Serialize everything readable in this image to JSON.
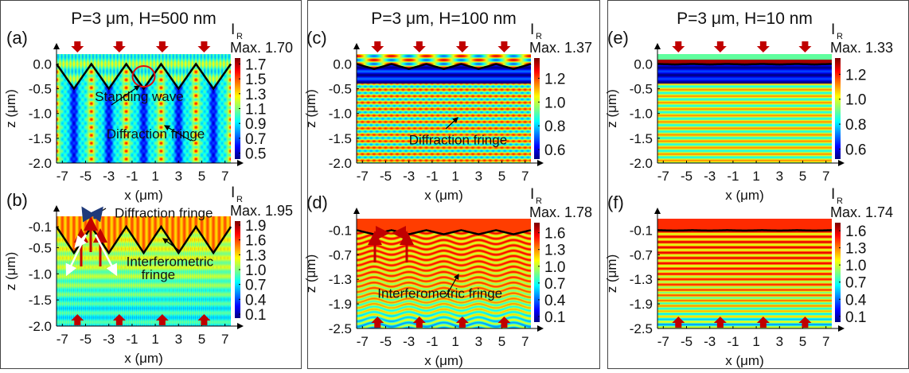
{
  "chart_data": [
    {
      "id": "a",
      "type": "heatmap",
      "panel_label": "(a)",
      "title": "P=3 μm, H=500 nm",
      "colorbar_title": "I",
      "colorbar_sub": "R",
      "max_label": "Max. 1.70",
      "xlabel": "x (μm)",
      "ylabel": "z (μm)",
      "xlim": [
        -7.5,
        7.5
      ],
      "ylim": [
        -2.0,
        0.2
      ],
      "xticks": [
        "-7",
        "-5",
        "-3",
        "-1",
        "1",
        "3",
        "5",
        "7"
      ],
      "yticks": [
        "0.0",
        "-0.5",
        "-1.0",
        "-1.5",
        "-2.0"
      ],
      "clim": [
        0.42,
        1.78
      ],
      "cticks": [
        "1.7",
        "1.5",
        "1.3",
        "1.1",
        "0.9",
        "0.7",
        "0.5"
      ],
      "grating": {
        "period": 3,
        "depth": 0.5,
        "top": 0.0
      },
      "incident_arrows": "top",
      "annotations": [
        {
          "text": "Standing wave",
          "x": -4.2,
          "z": -0.75
        },
        {
          "text": "Diffraction fringe",
          "x": -3.2,
          "z": -1.5
        }
      ]
    },
    {
      "id": "b",
      "type": "heatmap",
      "panel_label": "(b)",
      "title": "",
      "colorbar_title": "I",
      "colorbar_sub": "R",
      "max_label": "Max. 1.95",
      "xlabel": "x (μm)",
      "ylabel": "z (μm)",
      "xlim": [
        -7.5,
        7.5
      ],
      "ylim": [
        -2.0,
        0.1
      ],
      "xticks": [
        "-7",
        "-5",
        "-3",
        "-1",
        "1",
        "3",
        "5",
        "7"
      ],
      "yticks": [
        "-0.1",
        "-0.5",
        "-1.0",
        "-1.5",
        "-2.0"
      ],
      "clim": [
        0.02,
        1.98
      ],
      "cticks": [
        "1.9",
        "1.6",
        "1.3",
        "1.0",
        "0.7",
        "0.4",
        "0.1"
      ],
      "grating": {
        "period": 3,
        "depth": 0.5,
        "top": -0.1
      },
      "incident_arrows": "bottom",
      "annotations": [
        {
          "text": "Diffraction fringe",
          "x": -2.5,
          "z": 0.08
        },
        {
          "text": "Interferometric",
          "x": -1.5,
          "z": -0.85
        },
        {
          "text": "fringe",
          "x": -0.2,
          "z": -1.1
        }
      ]
    },
    {
      "id": "c",
      "type": "heatmap",
      "panel_label": "(c)",
      "title": "P=3 μm, H=100 nm",
      "colorbar_title": "I",
      "colorbar_sub": "R",
      "max_label": "Max. 1.37",
      "xlabel": "x (μm)",
      "ylabel": "z (μm)",
      "xlim": [
        -7.5,
        7.5
      ],
      "ylim": [
        -2.0,
        0.2
      ],
      "xticks": [
        "-7",
        "-5",
        "-3",
        "-1",
        "1",
        "3",
        "5",
        "7"
      ],
      "yticks": [
        "0.0",
        "-0.5",
        "-1.0",
        "-1.5",
        "-2.0"
      ],
      "clim": [
        0.52,
        1.37
      ],
      "cticks": [
        "1.2",
        "1.0",
        "0.8",
        "0.6"
      ],
      "grating": {
        "period": 3,
        "depth": 0.1,
        "top": 0.0
      },
      "incident_arrows": "top",
      "annotations": [
        {
          "text": "Diffraction fringe",
          "x": -3.0,
          "z": -1.62
        }
      ]
    },
    {
      "id": "d",
      "type": "heatmap",
      "panel_label": "(d)",
      "title": "",
      "colorbar_title": "I",
      "colorbar_sub": "R",
      "max_label": "Max. 1.78",
      "xlabel": "x (μm)",
      "ylabel": "z (μm)",
      "xlim": [
        -7.5,
        7.5
      ],
      "ylim": [
        -2.5,
        0.18
      ],
      "xticks": [
        "-7",
        "-5",
        "-3",
        "-1",
        "1",
        "3",
        "5",
        "7"
      ],
      "yticks": [
        "-0.1",
        "-0.7",
        "-1.3",
        "-1.9",
        "-2.5"
      ],
      "clim": [
        0.0,
        1.78
      ],
      "cticks": [
        "1.6",
        "1.3",
        "1.0",
        "0.7",
        "0.4",
        "0.1"
      ],
      "grating": {
        "period": 3,
        "depth": 0.1,
        "top": -0.1
      },
      "incident_arrows": "bottom",
      "annotations": [
        {
          "text": "Interferometric fringe",
          "x": -5.7,
          "z": -1.75
        }
      ]
    },
    {
      "id": "e",
      "type": "heatmap",
      "panel_label": "(e)",
      "title": "P=3 μm, H=10 nm",
      "colorbar_title": "I",
      "colorbar_sub": "R",
      "max_label": "Max. 1.33",
      "xlabel": "x (μm)",
      "ylabel": "z (μm)",
      "xlim": [
        -7.5,
        7.5
      ],
      "ylim": [
        -2.0,
        0.2
      ],
      "xticks": [
        "-7",
        "-5",
        "-3",
        "-1",
        "1",
        "3",
        "5",
        "7"
      ],
      "yticks": [
        "0.0",
        "-0.5",
        "-1.0",
        "-1.5",
        "-2.0"
      ],
      "clim": [
        0.52,
        1.33
      ],
      "cticks": [
        "1.2",
        "1.0",
        "0.8",
        "0.6"
      ],
      "grating": {
        "period": 3,
        "depth": 0.01,
        "top": 0.0
      },
      "incident_arrows": "top",
      "annotations": []
    },
    {
      "id": "f",
      "type": "heatmap",
      "panel_label": "(f)",
      "title": "",
      "colorbar_title": "I",
      "colorbar_sub": "R",
      "max_label": "Max. 1.74",
      "xlabel": "x (μm)",
      "ylabel": "z (μm)",
      "xlim": [
        -7.5,
        7.5
      ],
      "ylim": [
        -2.5,
        0.18
      ],
      "xticks": [
        "-7",
        "-5",
        "-3",
        "-1",
        "1",
        "3",
        "5",
        "7"
      ],
      "yticks": [
        "-0.1",
        "-0.7",
        "-1.3",
        "-1.9",
        "-2.5"
      ],
      "clim": [
        0.0,
        1.74
      ],
      "cticks": [
        "1.6",
        "1.3",
        "1.0",
        "0.7",
        "0.4",
        "0.1"
      ],
      "grating": {
        "period": 3,
        "depth": 0.01,
        "top": -0.1
      },
      "incident_arrows": "bottom",
      "annotations": []
    }
  ],
  "colors": {
    "arrow": "#c00000",
    "grating_line": "#000000",
    "diffraction_arrow": "#1f3a7a",
    "scatter_arrow": "#ffffff",
    "circle": "#e01010"
  }
}
